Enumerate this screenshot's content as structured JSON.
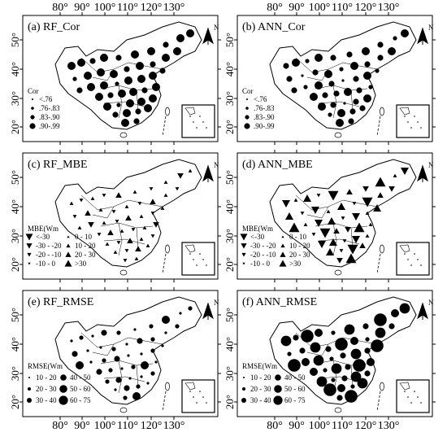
{
  "lon_ticks": [
    "80°",
    "90°",
    "100°",
    "110°",
    "120°",
    "130°"
  ],
  "lat_ticks": [
    "20°",
    "30°",
    "40°",
    "50°"
  ],
  "north_label": "N",
  "panels": [
    {
      "id": "a",
      "title": "(a) RF_Cor",
      "legend_title": "Cor",
      "kind": "circle",
      "legend": [
        "<.76",
        ".76-.83",
        ".83-.90",
        ".90-.99"
      ],
      "pattern": [
        3,
        3,
        2,
        3,
        2,
        3,
        3,
        2,
        3,
        3,
        1,
        3
      ]
    },
    {
      "id": "b",
      "title": "(b) ANN_Cor",
      "legend_title": "Cor",
      "kind": "circle",
      "legend": [
        "<.76",
        ".76-.83",
        ".83-.90",
        ".90-.99"
      ],
      "pattern": [
        2,
        3,
        1,
        3,
        2,
        2,
        3,
        2,
        1,
        3,
        2,
        0
      ]
    },
    {
      "id": "c",
      "title": "(c) RF_MBE",
      "legend_title": "MBE(Wm",
      "kind": "triangle",
      "legend": [
        "<-30",
        "-30 - -20",
        "-20 - -10",
        "-10 - 0",
        "0 - 10",
        "10 - 20",
        "20 - 30",
        ">30"
      ],
      "pattern": [
        4,
        3,
        4,
        3,
        5,
        4,
        3,
        4,
        2,
        4,
        3,
        5
      ]
    },
    {
      "id": "d",
      "title": "(d) ANN_MBE",
      "legend_title": "MBE(Wm",
      "kind": "triangle",
      "legend": [
        "<-30",
        "-30 - -20",
        "-20 - -10",
        "-10 - 0",
        "0 - 10",
        "10 - 20",
        "20 - 30",
        ">30"
      ],
      "pattern": [
        1,
        4,
        6,
        3,
        0,
        5,
        2,
        7,
        4,
        1,
        6,
        3
      ]
    },
    {
      "id": "e",
      "title": "(e) RF_RMSE",
      "legend_title": "RMSE(Wm",
      "kind": "circle",
      "legend": [
        "10 - 20",
        "20 - 30",
        "30 - 40",
        "40 - 50",
        "50 - 60",
        "60 - 75"
      ],
      "pattern": [
        0,
        1,
        0,
        2,
        1,
        0,
        1,
        3,
        0,
        1,
        2,
        0
      ]
    },
    {
      "id": "f",
      "title": "(f) ANN_RMSE",
      "legend_title": "RMSE(Wm",
      "kind": "circle",
      "legend": [
        "10 - 20",
        "20 - 30",
        "30 - 40",
        "40 - 50",
        "50 - 60",
        "60 - 75"
      ],
      "pattern": [
        4,
        2,
        5,
        3,
        1,
        4,
        2,
        5,
        3,
        4,
        1,
        2
      ]
    }
  ]
}
